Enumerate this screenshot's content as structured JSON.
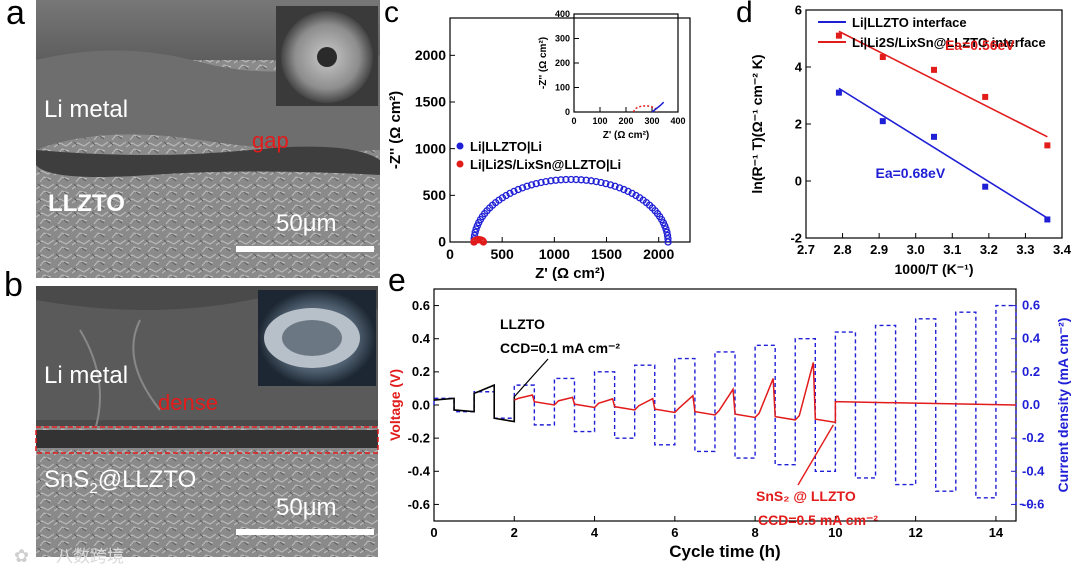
{
  "panel_a": {
    "letter": "a",
    "top_label": "Li metal",
    "gap_label": "gap",
    "bottom_label": "LLZTO",
    "scale_bar": "50μm"
  },
  "panel_b": {
    "letter": "b",
    "top_label": "Li metal",
    "dense_label": "dense",
    "bottom_label_main": "SnS",
    "bottom_label_sub": "2",
    "bottom_label_tail": "@LLZTO",
    "scale_bar": "50μm"
  },
  "watermark": "八数跨境",
  "chart_data": [
    {
      "panel": "c",
      "type": "scatter",
      "title": "",
      "xlabel": "Z' (Ω cm²)",
      "ylabel": "-Z'' (Ω cm²)",
      "xlim": [
        0,
        2300
      ],
      "ylim": [
        0,
        2400
      ],
      "xticks": [
        0,
        500,
        1000,
        1500,
        2000
      ],
      "yticks": [
        0,
        500,
        1000,
        1500,
        2000
      ],
      "legend": [
        "Li|LLZTO|Li",
        "Li|Li2S/LixSn@LLZTO|Li"
      ],
      "series": [
        {
          "name": "Li|LLZTO|Li",
          "color": "#1f1fd6",
          "shape": "semicircle",
          "start": 230,
          "end": 2090,
          "peak": 670
        },
        {
          "name": "Li|Li2S/LixSn@LLZTO|Li",
          "color": "#e21b1b",
          "shape": "semicircle",
          "start": 230,
          "end": 320,
          "peak": 25
        }
      ],
      "inset": {
        "xlabel": "Z' (Ω cm²)",
        "ylabel": "-Z'' (Ω cm²)",
        "xlim": [
          0,
          400
        ],
        "ylim": [
          0,
          400
        ],
        "xticks": [
          0,
          100,
          200,
          300,
          400
        ],
        "yticks": [
          0,
          100,
          200,
          300,
          400
        ]
      }
    },
    {
      "panel": "d",
      "type": "scatter",
      "xlabel": "1000/T (K⁻¹)",
      "ylabel": "ln(R⁻¹ T)(Ω⁻¹ cm⁻² K)",
      "xlim": [
        2.7,
        3.4
      ],
      "ylim": [
        -2,
        6
      ],
      "xticks": [
        2.7,
        2.8,
        2.9,
        3.0,
        3.1,
        3.2,
        3.3,
        3.4
      ],
      "yticks": [
        -2,
        0,
        2,
        4,
        6
      ],
      "series": [
        {
          "name": "Li|LLZTO interface",
          "color": "#1f1fd6",
          "x": [
            2.79,
            2.91,
            3.05,
            3.19,
            3.36
          ],
          "y": [
            3.1,
            2.1,
            1.55,
            -0.2,
            -1.35
          ],
          "fit": [
            [
              2.79,
              3.25
            ],
            [
              3.36,
              -1.3
            ]
          ],
          "ea": "Ea=0.68eV"
        },
        {
          "name": "Li|Li2S/LixSn@LLZTO interface",
          "color": "#e21b1b",
          "x": [
            2.79,
            2.91,
            3.05,
            3.19,
            3.36
          ],
          "y": [
            5.1,
            4.35,
            3.9,
            2.95,
            1.25
          ],
          "fit": [
            [
              2.79,
              5.25
            ],
            [
              3.36,
              1.55
            ]
          ],
          "ea": "Ea=0.56eV"
        }
      ]
    },
    {
      "panel": "e",
      "type": "line",
      "xlabel": "Cycle time (h)",
      "ylabel_left": "Voltage (V)",
      "ylabel_right": "Current density (mA cm⁻²)",
      "xlim": [
        0,
        14.5
      ],
      "ylim": [
        -0.7,
        0.7
      ],
      "xticks": [
        0,
        2,
        4,
        6,
        8,
        10,
        12,
        14
      ],
      "yticks": [
        -0.6,
        -0.4,
        -0.2,
        0.0,
        0.2,
        0.4,
        0.6
      ],
      "series": [
        {
          "name": "Current density",
          "color": "#1f1fd6",
          "style": "dashed",
          "step_h": 0.5,
          "levels": [
            0.04,
            0.08,
            0.12,
            0.16,
            0.2,
            0.24,
            0.28,
            0.32,
            0.36,
            0.4,
            0.44,
            0.48,
            0.52,
            0.56,
            0.6
          ]
        },
        {
          "name": "LLZTO voltage",
          "color": "#000000",
          "x": [
            0,
            0.5,
            0.5,
            1.0,
            1.0,
            1.5,
            1.5,
            2.0,
            2.0
          ],
          "y": [
            0.03,
            0.04,
            -0.03,
            -0.04,
            0.07,
            0.12,
            -0.08,
            -0.1,
            0.05
          ]
        },
        {
          "name": "SnS2@LLZTO voltage",
          "color": "#e21b1b",
          "x": [
            2,
            10,
            10,
            14.5
          ],
          "y": [
            0.03,
            -0.12,
            0.02,
            0.0
          ]
        }
      ],
      "annotations": {
        "llzto": "LLZTO",
        "llzto_ccd": "CCD=0.1 mA cm⁻²",
        "sns": "SnS₂ @ LLZTO",
        "sns_ccd": "CCD=0.5 mA cm⁻²"
      }
    }
  ]
}
